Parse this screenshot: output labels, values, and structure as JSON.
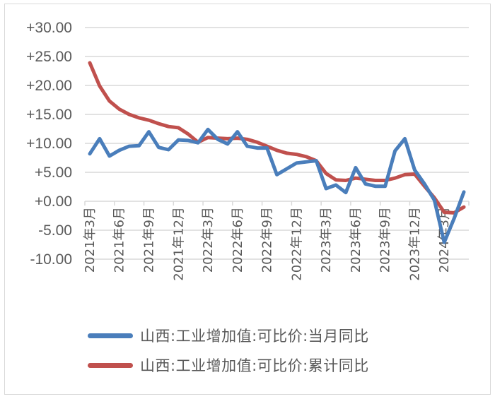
{
  "chart_data": {
    "type": "line",
    "title": "",
    "xlabel": "",
    "ylabel": "",
    "ylim": [
      -10,
      30
    ],
    "yticks": [
      "+30.00",
      "+25.00",
      "+20.00",
      "+15.00",
      "+10.00",
      "+5.00",
      "+0.00",
      "-5.00",
      "-10.00"
    ],
    "ytick_values": [
      30,
      25,
      20,
      15,
      10,
      5,
      0,
      -5,
      -10
    ],
    "grid": true,
    "legend_position": "bottom",
    "x": [
      "2021年3月",
      "2021年4月",
      "2021年5月",
      "2021年6月",
      "2021年7月",
      "2021年8月",
      "2021年9月",
      "2021年10月",
      "2021年11月",
      "2021年12月",
      "2022年1-2月",
      "2022年2月",
      "2022年3月",
      "2022年4月",
      "2022年5月",
      "2022年6月",
      "2022年7月",
      "2022年8月",
      "2022年9月",
      "2022年10月",
      "2022年11月",
      "2022年12月",
      "2023年1月",
      "2023年2月",
      "2023年3月",
      "2023年4月",
      "2023年5月",
      "2023年6月",
      "2023年7月",
      "2023年8月",
      "2023年9月",
      "2023年10月",
      "2023年11月",
      "2023年12月",
      "2024年1月",
      "2024年2月",
      "2024年3月",
      "2024年4月",
      "2024年5月"
    ],
    "x_tick_labels": [
      {
        "index": 0,
        "label": "2021年3月"
      },
      {
        "index": 3,
        "label": "2021年6月"
      },
      {
        "index": 6,
        "label": "2021年9月"
      },
      {
        "index": 9,
        "label": "2021年12月"
      },
      {
        "index": 12,
        "label": "2022年3月"
      },
      {
        "index": 15,
        "label": "2022年6月"
      },
      {
        "index": 18,
        "label": "2022年9月"
      },
      {
        "index": 21,
        "label": "2022年12月"
      },
      {
        "index": 24,
        "label": "2023年3月"
      },
      {
        "index": 27,
        "label": "2023年6月"
      },
      {
        "index": 30,
        "label": "2023年9月"
      },
      {
        "index": 33,
        "label": "2023年12月"
      },
      {
        "index": 36,
        "label": "2024年3月"
      }
    ],
    "series": [
      {
        "name": "山西:工业增加值:可比价:当月同比",
        "color": "#4a7ebb",
        "values": [
          8.2,
          10.8,
          7.8,
          8.8,
          9.5,
          9.6,
          12.0,
          9.3,
          8.9,
          10.6,
          10.5,
          10.1,
          12.4,
          10.7,
          9.9,
          12.0,
          9.5,
          9.2,
          9.2,
          4.6,
          5.6,
          6.6,
          6.8,
          7.0,
          2.2,
          2.8,
          1.5,
          5.8,
          3.0,
          2.6,
          2.6,
          8.7,
          10.8,
          5.4,
          3.0,
          0.2,
          -7.1,
          -3.0,
          1.6
        ]
      },
      {
        "name": "山西:工业增加值:可比价:累计同比",
        "color": "#c0504d",
        "values": [
          23.9,
          19.9,
          17.3,
          15.9,
          15.0,
          14.4,
          14.0,
          13.4,
          12.9,
          12.7,
          11.6,
          10.2,
          11.0,
          10.9,
          10.8,
          10.9,
          10.7,
          10.2,
          9.5,
          8.8,
          8.3,
          8.1,
          7.7,
          7.0,
          4.8,
          3.7,
          3.6,
          4.0,
          3.8,
          3.6,
          3.6,
          4.0,
          4.6,
          4.7,
          2.6,
          0.6,
          -1.9,
          -2.0,
          -1.0
        ]
      }
    ]
  },
  "legend": {
    "items": [
      {
        "label": "山西:工业增加值:可比价:当月同比",
        "color": "#4a7ebb"
      },
      {
        "label": "山西:工业增加值:可比价:累计同比",
        "color": "#c0504d"
      }
    ]
  }
}
